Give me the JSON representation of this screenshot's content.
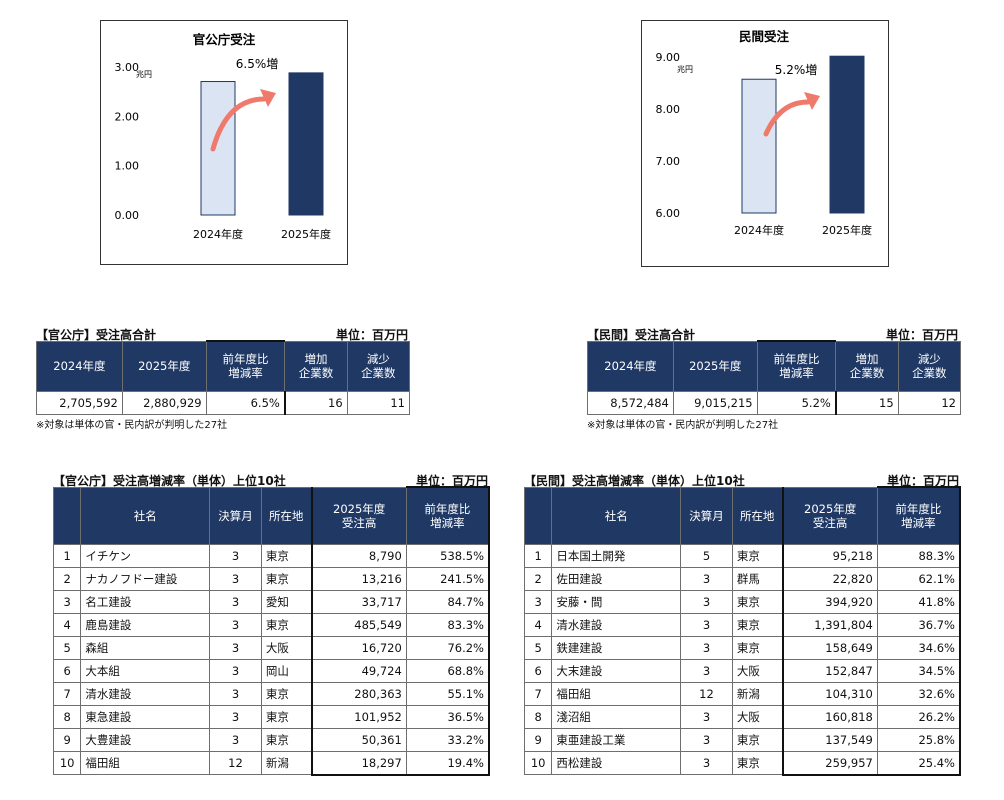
{
  "chart_data": [
    {
      "type": "bar",
      "title": "官公庁受注",
      "unit_label": "兆円",
      "categories": [
        "2024年度",
        "2025年度"
      ],
      "values": [
        2.705592,
        2.880929
      ],
      "ylim": [
        0,
        3.0
      ],
      "yticks": [
        "0.00",
        "1.00",
        "2.00",
        "3.00"
      ],
      "annotation": "6.5%増",
      "colors": [
        "#dbe4f3",
        "#1f3864"
      ],
      "grid": false
    },
    {
      "type": "bar",
      "title": "民間受注",
      "unit_label": "兆円",
      "categories": [
        "2024年度",
        "2025年度"
      ],
      "values": [
        8.572484,
        9.015215
      ],
      "ylim": [
        6.0,
        9.0
      ],
      "yticks": [
        "6.00",
        "7.00",
        "8.00",
        "9.00"
      ],
      "annotation": "5.2%増",
      "colors": [
        "#dbe4f3",
        "#1f3864"
      ],
      "grid": false
    }
  ],
  "summary_public": {
    "title": "【官公庁】受注高合計",
    "unit": "単位：百万円",
    "headers": [
      "2024年度",
      "2025年度",
      "前年度比\n増減率",
      "増加\n企業数",
      "減少\n企業数"
    ],
    "row": [
      "2,705,592",
      "2,880,929",
      "6.5%",
      "16",
      "11"
    ],
    "note": "※対象は単体の官・民内訳が判明した27社"
  },
  "summary_private": {
    "title": "【民間】受注高合計",
    "unit": "単位：百万円",
    "headers": [
      "2024年度",
      "2025年度",
      "前年度比\n増減率",
      "増加\n企業数",
      "減少\n企業数"
    ],
    "row": [
      "8,572,484",
      "9,015,215",
      "5.2%",
      "15",
      "12"
    ],
    "note": "※対象は単体の官・民内訳が判明した27社"
  },
  "ranking_public": {
    "title": "【官公庁】受注高増減率（単体）上位10社",
    "unit": "単位：百万円",
    "headers": {
      "company": "社名",
      "month": "決算月",
      "location": "所在地",
      "amount": "2025年度\n受注高",
      "rate": "前年度比\n増減率"
    },
    "rows": [
      [
        "1",
        "イチケン",
        "3",
        "東京",
        "8,790",
        "538.5%"
      ],
      [
        "2",
        "ナカノフドー建設",
        "3",
        "東京",
        "13,216",
        "241.5%"
      ],
      [
        "3",
        "名工建設",
        "3",
        "愛知",
        "33,717",
        "84.7%"
      ],
      [
        "4",
        "鹿島建設",
        "3",
        "東京",
        "485,549",
        "83.3%"
      ],
      [
        "5",
        "森組",
        "3",
        "大阪",
        "16,720",
        "76.2%"
      ],
      [
        "6",
        "大本組",
        "3",
        "岡山",
        "49,724",
        "68.8%"
      ],
      [
        "7",
        "清水建設",
        "3",
        "東京",
        "280,363",
        "55.1%"
      ],
      [
        "8",
        "東急建設",
        "3",
        "東京",
        "101,952",
        "36.5%"
      ],
      [
        "9",
        "大豊建設",
        "3",
        "東京",
        "50,361",
        "33.2%"
      ],
      [
        "10",
        "福田組",
        "12",
        "新潟",
        "18,297",
        "19.4%"
      ]
    ]
  },
  "ranking_private": {
    "title": "【民間】受注高増減率（単体）上位10社",
    "unit": "単位：百万円",
    "headers": {
      "company": "社名",
      "month": "決算月",
      "location": "所在地",
      "amount": "2025年度\n受注高",
      "rate": "前年度比\n増減率"
    },
    "rows": [
      [
        "1",
        "日本国土開発",
        "5",
        "東京",
        "95,218",
        "88.3%"
      ],
      [
        "2",
        "佐田建設",
        "3",
        "群馬",
        "22,820",
        "62.1%"
      ],
      [
        "3",
        "安藤・間",
        "3",
        "東京",
        "394,920",
        "41.8%"
      ],
      [
        "4",
        "清水建設",
        "3",
        "東京",
        "1,391,804",
        "36.7%"
      ],
      [
        "5",
        "鉄建建設",
        "3",
        "東京",
        "158,649",
        "34.6%"
      ],
      [
        "6",
        "大末建設",
        "3",
        "大阪",
        "152,847",
        "34.5%"
      ],
      [
        "7",
        "福田組",
        "12",
        "新潟",
        "104,310",
        "32.6%"
      ],
      [
        "8",
        "淺沼組",
        "3",
        "大阪",
        "160,818",
        "26.2%"
      ],
      [
        "9",
        "東亜建設工業",
        "3",
        "東京",
        "137,549",
        "25.8%"
      ],
      [
        "10",
        "西松建設",
        "3",
        "東京",
        "259,957",
        "25.4%"
      ]
    ]
  }
}
